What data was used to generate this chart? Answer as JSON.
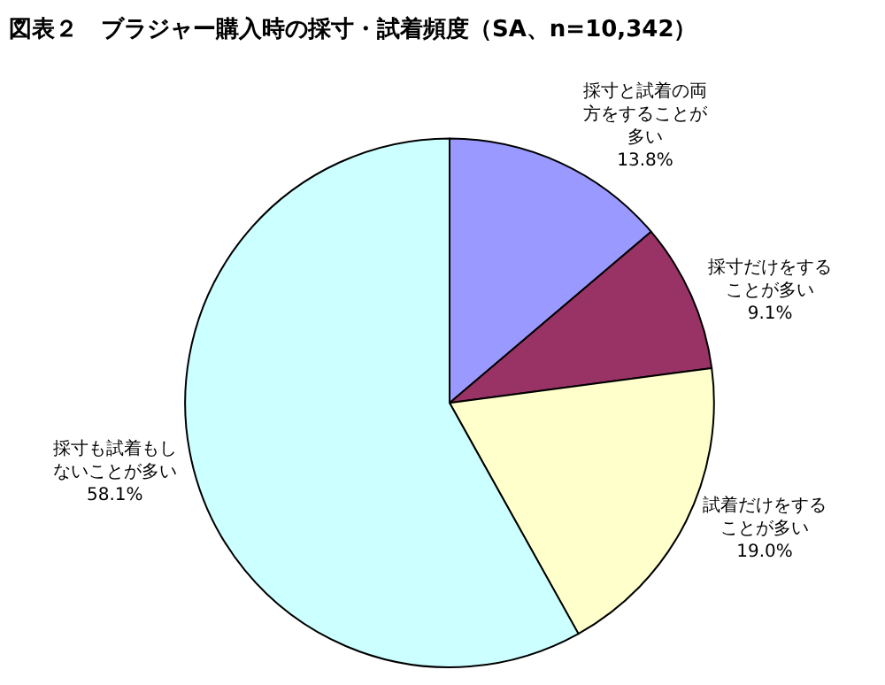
{
  "chart_data": {
    "type": "pie",
    "title": "図表２　ブラジャー購入時の採寸・試着頻度（SA、n=10,342）",
    "categories": [
      "採寸と試着の両方をすることが多い",
      "採寸だけをすることが多い",
      "試着だけをすることが多い",
      "採寸も試着もしないことが多い"
    ],
    "values": [
      13.8,
      9.1,
      19.0,
      58.1
    ],
    "value_labels": [
      "13.8%",
      "9.1%",
      "19.0%",
      "58.1%"
    ],
    "colors": [
      "#9999ff",
      "#993366",
      "#ffffcc",
      "#ccffff"
    ],
    "legend": false
  }
}
